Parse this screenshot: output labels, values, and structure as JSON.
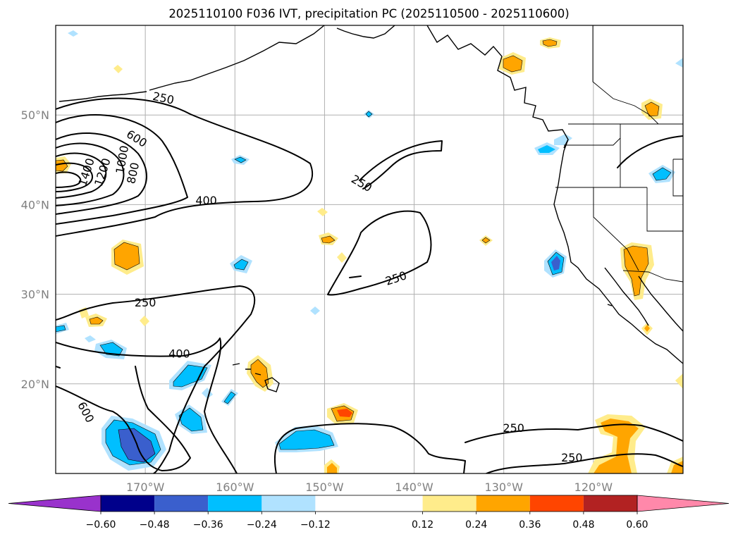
{
  "title": "2025110100 F036 IVT, precipitation PC (2025110500 - 2025110600)",
  "map": {
    "lat_range": [
      10,
      60
    ],
    "lon_range": [
      -180,
      -110
    ],
    "lat_ticks": [
      {
        "value": 20,
        "label": "20°N"
      },
      {
        "value": 30,
        "label": "30°N"
      },
      {
        "value": 40,
        "label": "40°N"
      },
      {
        "value": 50,
        "label": "50°N"
      }
    ],
    "lon_ticks": [
      {
        "value": -170,
        "label": "170°W"
      },
      {
        "value": -160,
        "label": "160°W"
      },
      {
        "value": -150,
        "label": "150°W"
      },
      {
        "value": -140,
        "label": "140°W"
      },
      {
        "value": -130,
        "label": "130°W"
      },
      {
        "value": -120,
        "label": "120°W"
      }
    ],
    "grid": true,
    "tick_label_color": "#808080"
  },
  "ivt_contour_labels": [
    {
      "text": "250",
      "lon": -168,
      "lat": 51.8,
      "rot": 12
    },
    {
      "text": "600",
      "lon": -171,
      "lat": 47.3,
      "rot": 32
    },
    {
      "text": "1400",
      "lon": -176.5,
      "lat": 43.6,
      "rot": -72
    },
    {
      "text": "1200",
      "lon": -174.7,
      "lat": 43.6,
      "rot": -72
    },
    {
      "text": "1000",
      "lon": -172.5,
      "lat": 45.0,
      "rot": -80
    },
    {
      "text": "800",
      "lon": -171.3,
      "lat": 43.5,
      "rot": -78
    },
    {
      "text": "400",
      "lon": -163.2,
      "lat": 40.4,
      "rot": 0
    },
    {
      "text": "250",
      "lon": -145.9,
      "lat": 42.3,
      "rot": 30
    },
    {
      "text": "250",
      "lon": -142.0,
      "lat": 31.7,
      "rot": -18
    },
    {
      "text": "250",
      "lon": -170.0,
      "lat": 29.0,
      "rot": 0
    },
    {
      "text": "400",
      "lon": -166.2,
      "lat": 23.3,
      "rot": 0
    },
    {
      "text": "600",
      "lon": -176.7,
      "lat": 16.8,
      "rot": 62
    },
    {
      "text": "250",
      "lon": -128.9,
      "lat": 15.0,
      "rot": 0
    },
    {
      "text": "250",
      "lon": -122.4,
      "lat": 11.7,
      "rot": 0
    }
  ],
  "colorbar": {
    "boundaries": [
      -0.6,
      -0.48,
      -0.36,
      -0.24,
      -0.12,
      0.12,
      0.24,
      0.36,
      0.48,
      0.6
    ],
    "tick_labels": [
      "−0.60",
      "−0.48",
      "−0.36",
      "−0.24",
      "−0.12",
      "0.12",
      "0.24",
      "0.36",
      "0.48",
      "0.60"
    ],
    "under_color": "#9932cc",
    "over_color": "#ff88aa",
    "colors": [
      "#00008b",
      "#3a5fcd",
      "#00bfff",
      "#b0e2ff",
      "#ffffff",
      "#ffec8b",
      "#ffa500",
      "#ff4500",
      "#b22222"
    ],
    "extend": "both"
  }
}
